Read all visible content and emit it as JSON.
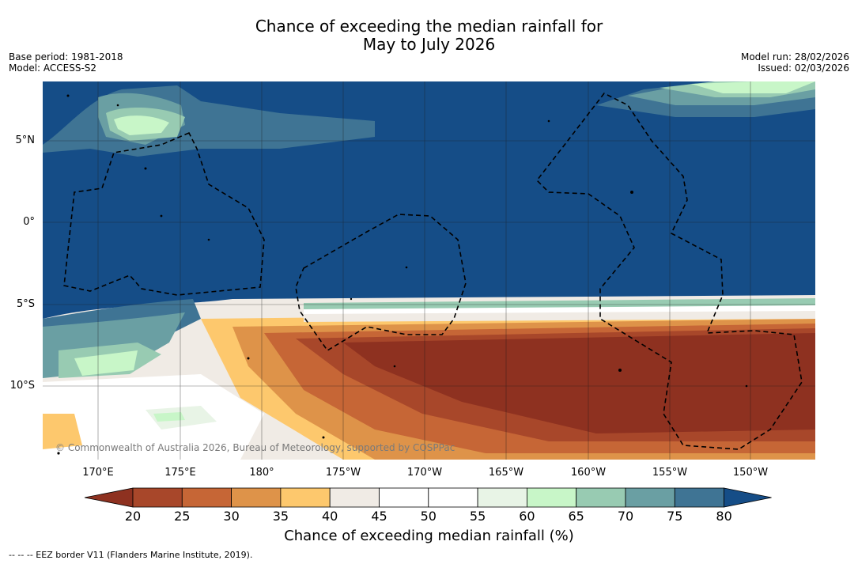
{
  "title": {
    "line1": "Chance of exceeding the median rainfall for",
    "line2": "May to July 2026"
  },
  "meta_left": {
    "base_period": "Base period: 1981-2018",
    "model": "Model: ACCESS-S2"
  },
  "meta_right": {
    "model_run": "Model run: 28/02/2026",
    "issued": "Issued: 02/03/2026"
  },
  "map": {
    "lon_labels": [
      "170°E",
      "175°E",
      "180°",
      "175°W",
      "170°W",
      "165°W",
      "160°W",
      "155°W",
      "150°W"
    ],
    "lat_labels": [
      "5°N",
      "0°",
      "5°S",
      "10°S"
    ],
    "copyright": "© Commonwealth of Australia 2026, Bureau of Meteorology, supported by COSPPac"
  },
  "colorbar": {
    "title": "Chance of exceeding median rainfall (%)",
    "tick_labels": [
      "20",
      "25",
      "30",
      "35",
      "40",
      "45",
      "50",
      "55",
      "60",
      "65",
      "70",
      "75",
      "80"
    ],
    "colors": {
      "under": "#8e3120",
      "bins": [
        "#a8472a",
        "#c66636",
        "#de9349",
        "#fdc86d",
        "#f0ebe5",
        "#ffffff",
        "#ffffff",
        "#e8f4e6",
        "#c8f6c8",
        "#98cbb2",
        "#6a9fa3",
        "#3f7494"
      ],
      "over": "#154d87"
    }
  },
  "footer": "--  --  -- EEZ border V11 (Flanders Marine Institute, 2019)."
}
